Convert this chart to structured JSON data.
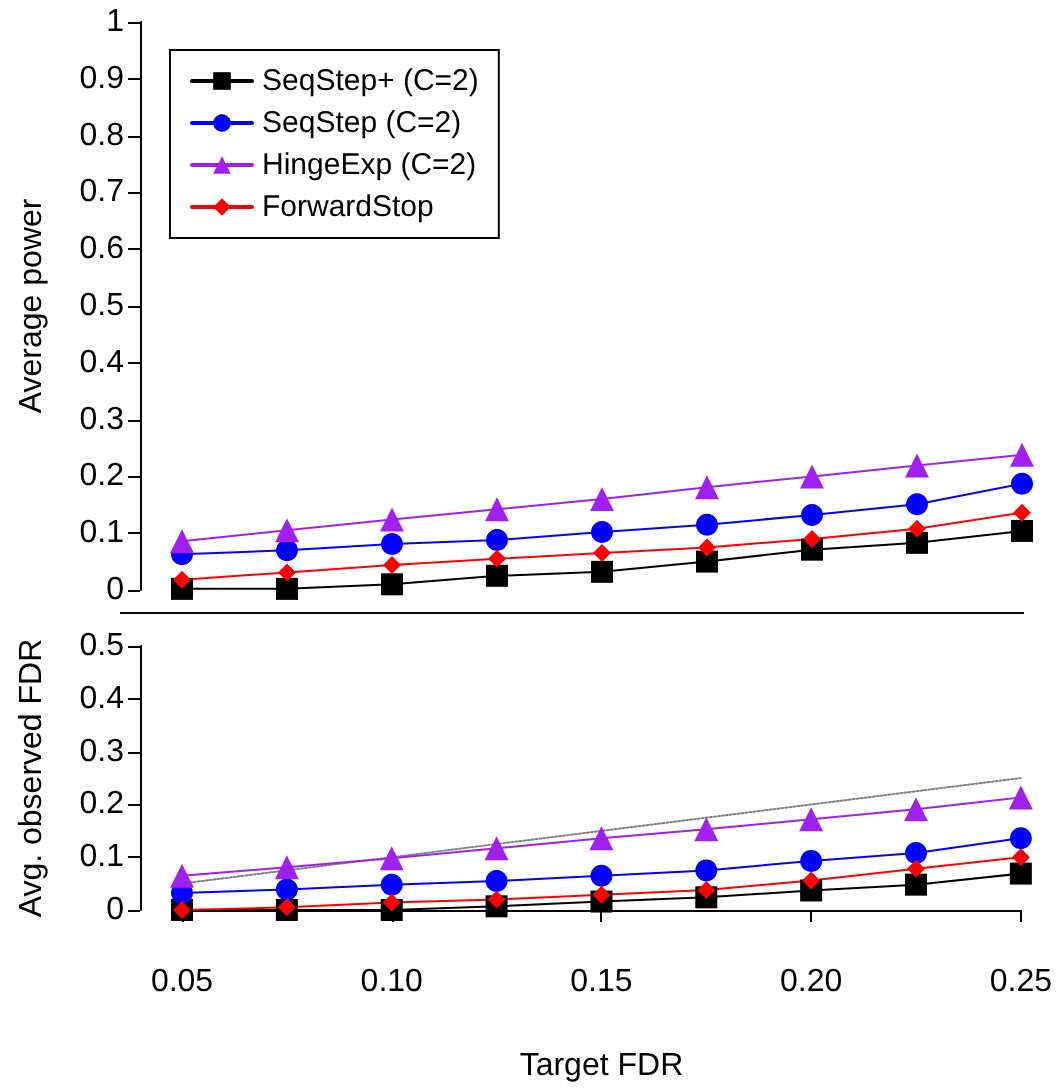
{
  "chart_data": [
    {
      "type": "line",
      "ylabel": "Average power",
      "legend": "top left",
      "tick_labels": "y",
      "grid": false,
      "xlim": [
        0.05,
        0.25
      ],
      "ylim": [
        0,
        1
      ],
      "yticks": [
        0,
        0.1,
        0.2,
        0.3,
        0.4,
        0.5,
        0.6,
        0.7,
        0.8,
        0.9,
        1
      ],
      "x": [
        0.05,
        0.075,
        0.1,
        0.125,
        0.15,
        0.175,
        0.2,
        0.225,
        0.25
      ],
      "series": [
        {
          "name": "SeqStep+ (C=2)",
          "color": "#000000",
          "marker": "square",
          "values": [
            0.002,
            0.002,
            0.01,
            0.025,
            0.032,
            0.05,
            0.071,
            0.083,
            0.104
          ]
        },
        {
          "name": "SeqStep (C=2)",
          "color": "#0000ff",
          "marker": "circle",
          "values": [
            0.063,
            0.07,
            0.081,
            0.088,
            0.102,
            0.115,
            0.132,
            0.151,
            0.187
          ]
        },
        {
          "name": "HingeExp (C=2)",
          "color": "#a020f0",
          "marker": "triangle",
          "values": [
            0.086,
            0.105,
            0.124,
            0.142,
            0.16,
            0.181,
            0.2,
            0.219,
            0.238
          ]
        },
        {
          "name": "ForwardStop",
          "color": "#ff0000",
          "marker": "diamond",
          "values": [
            0.018,
            0.031,
            0.044,
            0.055,
            0.065,
            0.075,
            0.09,
            0.108,
            0.136
          ]
        }
      ]
    },
    {
      "type": "line",
      "ylabel": "Avg. observed FDR",
      "xlabel": "Target FDR",
      "legend": false,
      "grid": false,
      "xlim": [
        0.05,
        0.25
      ],
      "xticks": [
        {
          "value": 0.05,
          "label": "0.05"
        },
        {
          "value": 0.1,
          "label": "0.10"
        },
        {
          "value": 0.15,
          "label": "0.15"
        },
        {
          "value": 0.2,
          "label": "0.20"
        },
        {
          "value": 0.25,
          "label": "0.25"
        }
      ],
      "ylim": [
        0,
        0.5
      ],
      "yticks": [
        0,
        0.1,
        0.2,
        0.3,
        0.4,
        0.5
      ],
      "x": [
        0.05,
        0.075,
        0.1,
        0.125,
        0.15,
        0.175,
        0.2,
        0.225,
        0.25
      ],
      "series": [
        {
          "color": "#808080",
          "marker": "none",
          "line_style": "dotted",
          "x": [
            0.05,
            0.25
          ],
          "values": [
            0.05,
            0.25
          ]
        },
        {
          "color": "#000000",
          "marker": "square",
          "values": [
            0,
            0,
            0,
            0.007,
            0.016,
            0.024,
            0.037,
            0.048,
            0.069
          ]
        },
        {
          "color": "#0000ff",
          "marker": "circle",
          "values": [
            0.032,
            0.039,
            0.048,
            0.055,
            0.065,
            0.075,
            0.093,
            0.108,
            0.136
          ]
        },
        {
          "color": "#a020f0",
          "marker": "triangle",
          "values": [
            0.065,
            0.081,
            0.098,
            0.117,
            0.136,
            0.153,
            0.172,
            0.191,
            0.213
          ]
        },
        {
          "color": "#ff0000",
          "marker": "diamond",
          "values": [
            0,
            0.005,
            0.014,
            0.02,
            0.029,
            0.038,
            0.056,
            0.078,
            0.1
          ]
        }
      ]
    }
  ]
}
